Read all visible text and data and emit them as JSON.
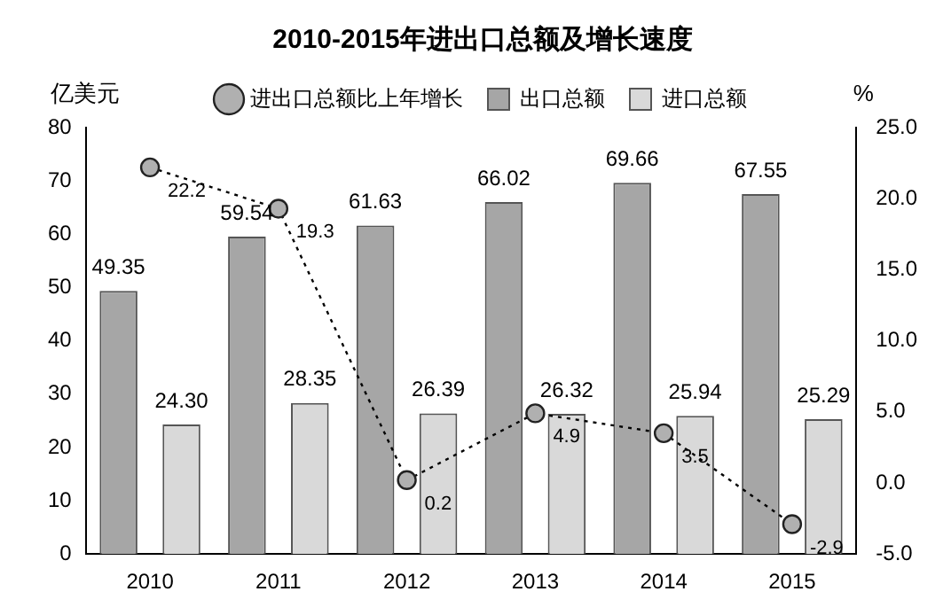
{
  "chart_data": {
    "type": "bar",
    "title": "2010-2015年进出口总额及增长速度",
    "ylabel": "亿美元",
    "y2label": "%",
    "categories": [
      "2010",
      "2011",
      "2012",
      "2013",
      "2014",
      "2015"
    ],
    "series": [
      {
        "name": "出口总额",
        "color": "#a6a6a6",
        "values": [
          49.35,
          59.54,
          61.63,
          66.02,
          69.66,
          67.55
        ],
        "value_labels": [
          "49.35",
          "59.54",
          "61.63",
          "66.02",
          "69.66",
          "67.55"
        ]
      },
      {
        "name": "进口总额",
        "color": "#d9d9d9",
        "values": [
          24.3,
          28.35,
          26.39,
          26.32,
          25.94,
          25.29
        ],
        "value_labels": [
          "24.30",
          "28.35",
          "26.39",
          "26.32",
          "25.94",
          "25.29"
        ]
      },
      {
        "name": "进出口总额比上年增长",
        "type": "line",
        "axis": "y2",
        "color": "#000000",
        "marker": "circle",
        "line_style": "dotted",
        "values": [
          22.2,
          19.3,
          0.2,
          4.9,
          3.5,
          -2.9
        ],
        "value_labels": [
          "22.2",
          "19.3",
          "0.2",
          "4.9",
          "3.5",
          "-2.9"
        ]
      }
    ],
    "ylim": [
      0,
      80
    ],
    "yticks": [
      0,
      10,
      20,
      30,
      40,
      50,
      60,
      70,
      80
    ],
    "y2lim": [
      -5,
      25
    ],
    "y2ticks": [
      {
        "value": -5,
        "label": "-5.0"
      },
      {
        "value": 0,
        "label": "0.0"
      },
      {
        "value": 5,
        "label": "5.0"
      },
      {
        "value": 10,
        "label": "10.0"
      },
      {
        "value": 15,
        "label": "15.0"
      },
      {
        "value": 20,
        "label": "20.0"
      },
      {
        "value": 25,
        "label": "25.0"
      }
    ],
    "grid": false,
    "legend": "top"
  }
}
